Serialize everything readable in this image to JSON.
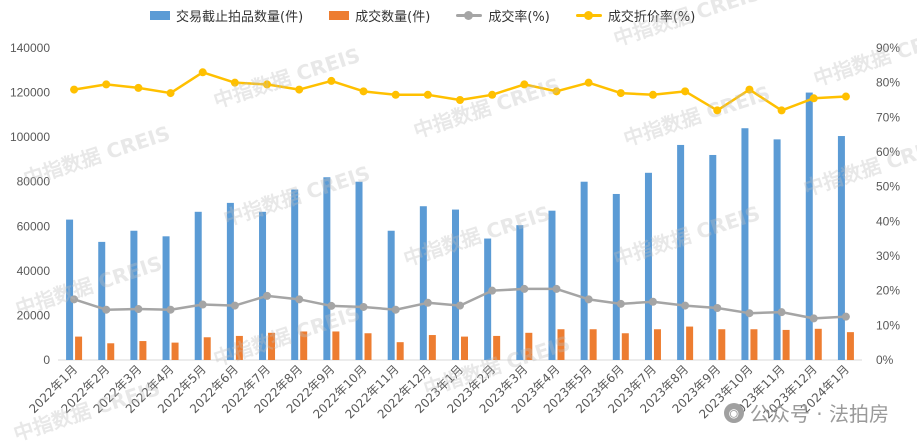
{
  "chart_data": {
    "type": "bar+line",
    "title": "",
    "categories": [
      "2022年1月",
      "2022年2月",
      "2022年3月",
      "2022年4月",
      "2022年5月",
      "2022年6月",
      "2022年7月",
      "2022年8月",
      "2022年9月",
      "2022年10月",
      "2022年11月",
      "2022年12月",
      "2023年1月",
      "2023年2月",
      "2023年3月",
      "2023年4月",
      "2023年5月",
      "2023年6月",
      "2023年7月",
      "2023年8月",
      "2023年9月",
      "2023年10月",
      "2023年11月",
      "2023年12月",
      "2024年1月"
    ],
    "series": [
      {
        "name": "交易截止拍品数量(件)",
        "type": "bar",
        "axis": "left",
        "color": "#5b9bd5",
        "values": [
          63000,
          53000,
          58000,
          55500,
          66500,
          70500,
          66500,
          76500,
          82000,
          80000,
          58000,
          69000,
          67500,
          54500,
          60500,
          67000,
          80000,
          74500,
          84000,
          96500,
          92000,
          104000,
          99000,
          120000,
          100500
        ]
      },
      {
        "name": "成交数量(件)",
        "type": "bar",
        "axis": "left",
        "color": "#ed7d31",
        "values": [
          10500,
          7500,
          8500,
          7800,
          10200,
          10800,
          12200,
          12800,
          12800,
          12000,
          8000,
          11200,
          10500,
          10800,
          12200,
          13800,
          13800,
          12000,
          13800,
          15000,
          13800,
          13800,
          13500,
          14000,
          12500
        ]
      },
      {
        "name": "成交率(%)",
        "type": "line",
        "axis": "right",
        "color": "#a5a5a5",
        "values": [
          17.5,
          14.5,
          14.7,
          14.5,
          16,
          15.7,
          18.5,
          17.5,
          15.6,
          15.3,
          14.5,
          16.5,
          15.7,
          20,
          20.5,
          20.5,
          17.5,
          16.2,
          16.8,
          15.7,
          15,
          13.5,
          13.8,
          12,
          12.5
        ]
      },
      {
        "name": "成交折价率(%)",
        "type": "line",
        "axis": "right",
        "color": "#ffc000",
        "values": [
          78,
          79.5,
          78.5,
          77,
          83,
          80,
          79.5,
          78,
          80.5,
          77.5,
          76.5,
          76.5,
          75,
          76.5,
          79.5,
          77.5,
          80,
          77,
          76.5,
          77.5,
          72,
          78,
          72,
          75.5,
          76
        ]
      }
    ],
    "y_left": {
      "min": 0,
      "max": 140000,
      "ticks": [
        0,
        20000,
        40000,
        60000,
        80000,
        100000,
        120000,
        140000
      ]
    },
    "y_right": {
      "min": 0,
      "max": 90,
      "ticks": [
        "0%",
        "10%",
        "20%",
        "30%",
        "40%",
        "50%",
        "60%",
        "70%",
        "80%",
        "90%"
      ]
    },
    "grid": false,
    "legend_position": "top"
  },
  "watermark": {
    "text": "中指数据 CREIS",
    "corner_text": "公众号 · 法拍房",
    "corner_icon": "wechat-icon"
  }
}
